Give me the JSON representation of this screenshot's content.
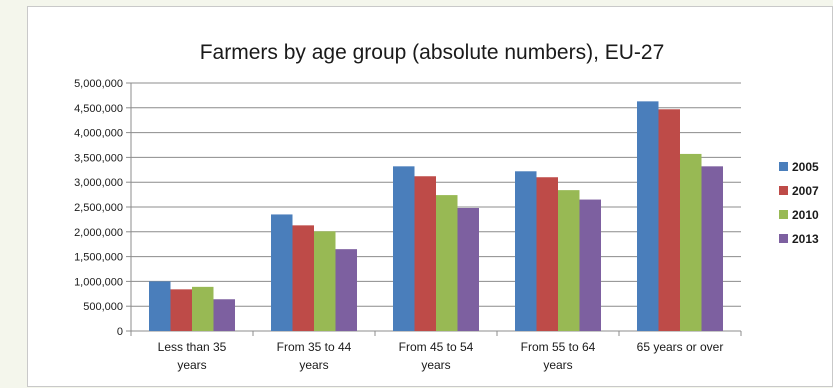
{
  "chart_data": {
    "type": "bar",
    "title": "Farmers by age group (absolute numbers), EU-27",
    "xlabel": "",
    "ylabel": "",
    "ylim": [
      0,
      5000000
    ],
    "ytick_values": [
      0,
      500000,
      1000000,
      1500000,
      2000000,
      2500000,
      3000000,
      3500000,
      4000000,
      4500000,
      5000000
    ],
    "ytick_labels": [
      "0",
      "500,000",
      "1,000,000",
      "1,500,000",
      "2,000,000",
      "2,500,000",
      "3,000,000",
      "3,500,000",
      "4,000,000",
      "4,500,000",
      "5,000,000"
    ],
    "grid": true,
    "legend_position": "right",
    "categories": [
      [
        "Less than 35",
        "years"
      ],
      [
        "From 35 to 44",
        "years"
      ],
      [
        "From 45 to 54",
        "years"
      ],
      [
        "From 55 to 64",
        "years"
      ],
      [
        "65 years or over"
      ]
    ],
    "series": [
      {
        "name": "2005",
        "color": "#4a7ebb",
        "values": [
          1000000,
          2350000,
          3320000,
          3220000,
          4630000
        ]
      },
      {
        "name": "2007",
        "color": "#be4b48",
        "values": [
          840000,
          2130000,
          3120000,
          3100000,
          4470000
        ]
      },
      {
        "name": "2010",
        "color": "#98b954",
        "values": [
          890000,
          2010000,
          2740000,
          2840000,
          3570000
        ]
      },
      {
        "name": "2013",
        "color": "#7d60a0",
        "values": [
          640000,
          1650000,
          2480000,
          2650000,
          3320000
        ]
      }
    ]
  }
}
